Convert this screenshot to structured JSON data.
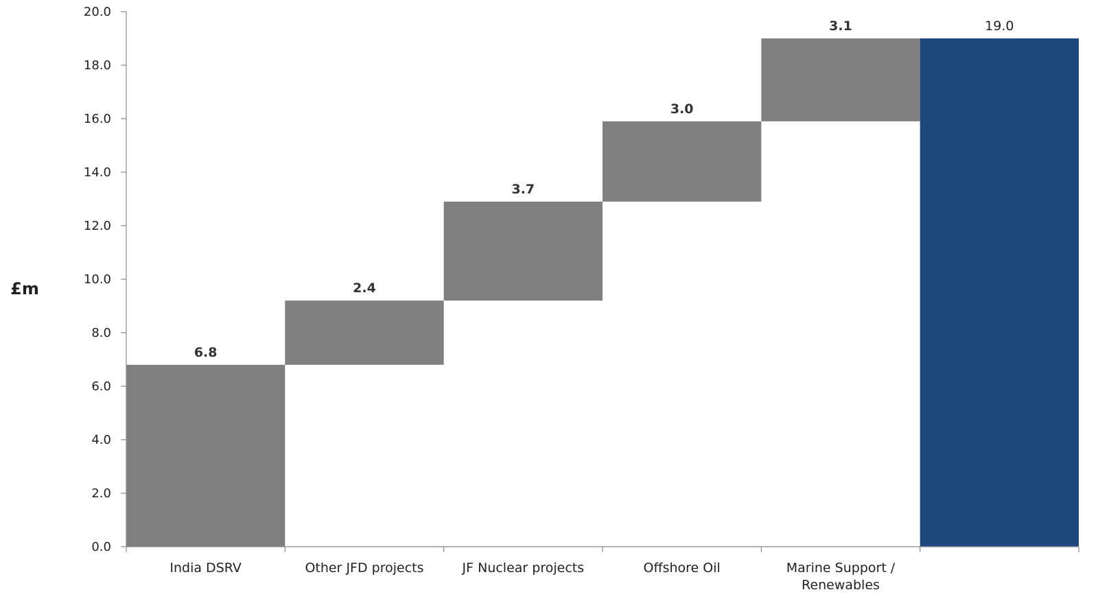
{
  "chart_data": {
    "type": "bar",
    "subtype": "waterfall",
    "title": "",
    "xlabel": "",
    "ylabel": "£m",
    "ylim": [
      0,
      20
    ],
    "yticks": [
      "0.0",
      "2.0",
      "4.0",
      "6.0",
      "8.0",
      "10.0",
      "12.0",
      "14.0",
      "16.0",
      "18.0",
      "20.0"
    ],
    "grid": false,
    "categories": [
      "India DSRV",
      "Other JFD projects",
      "JF Nuclear projects",
      "Offshore Oil",
      "Marine Support / Renewables",
      ""
    ],
    "category_lines": [
      [
        "India DSRV"
      ],
      [
        "Other JFD projects"
      ],
      [
        "JF Nuclear projects"
      ],
      [
        "Offshore Oil"
      ],
      [
        "Marine Support /",
        "Renewables"
      ],
      [
        ""
      ]
    ],
    "values": [
      6.8,
      2.4,
      3.7,
      3.0,
      3.1,
      19.0
    ],
    "labels": [
      "6.8",
      "2.4",
      "3.7",
      "3.0",
      "3.1",
      "19.0"
    ],
    "is_total": [
      false,
      false,
      false,
      false,
      false,
      true
    ],
    "colors": {
      "step": "#7f7f7f",
      "total": "#1f497d",
      "axis": "#888888"
    }
  }
}
